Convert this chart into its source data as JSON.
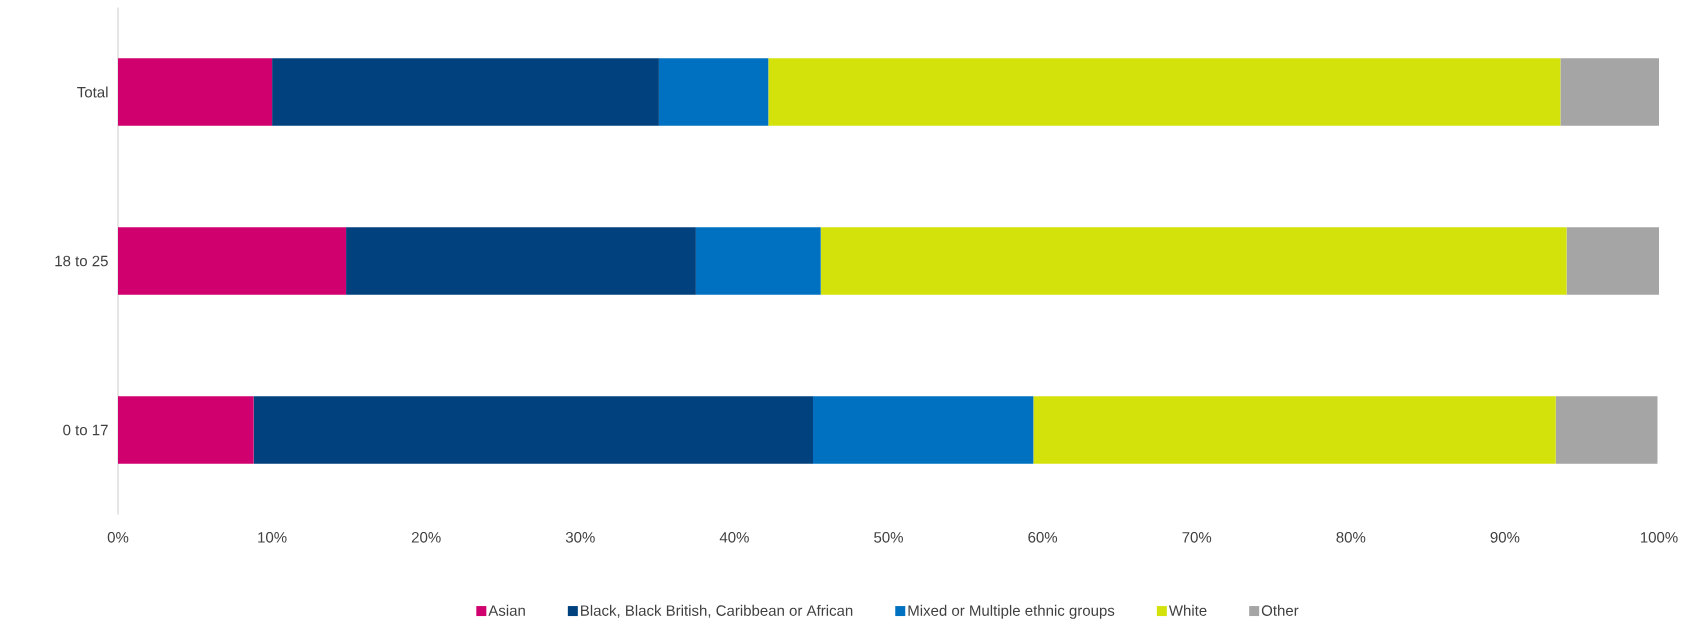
{
  "chart_data": {
    "type": "bar",
    "orientation": "horizontal",
    "stacked": true,
    "categories": [
      "Total",
      "18 to 25",
      "0 to 17"
    ],
    "series": [
      {
        "name": "Asian",
        "color": "#d0006f",
        "values": [
          10.0,
          14.8,
          8.8
        ]
      },
      {
        "name": "Black, Black British, Caribbean or African",
        "color": "#00417e",
        "values": [
          25.1,
          22.7,
          36.3
        ]
      },
      {
        "name": "Mixed or Multiple ethnic groups",
        "color": "#0070c0",
        "values": [
          7.1,
          8.1,
          14.3
        ]
      },
      {
        "name": "White",
        "color": "#d4e20c",
        "values": [
          51.4,
          48.4,
          33.9
        ]
      },
      {
        "name": "Other",
        "color": "#a5a5a5",
        "values": [
          6.4,
          6.1,
          6.6
        ]
      }
    ],
    "xlim": [
      0,
      100
    ],
    "xticks": [
      {
        "value": 0,
        "label": "0%"
      },
      {
        "value": 10,
        "label": "10%"
      },
      {
        "value": 20,
        "label": "20%"
      },
      {
        "value": 30,
        "label": "30%"
      },
      {
        "value": 40,
        "label": "40%"
      },
      {
        "value": 50,
        "label": "50%"
      },
      {
        "value": 60,
        "label": "60%"
      },
      {
        "value": 70,
        "label": "70%"
      },
      {
        "value": 80,
        "label": "80%"
      },
      {
        "value": 90,
        "label": "90%"
      },
      {
        "value": 100,
        "label": "100%"
      }
    ],
    "legend": "bottom"
  }
}
